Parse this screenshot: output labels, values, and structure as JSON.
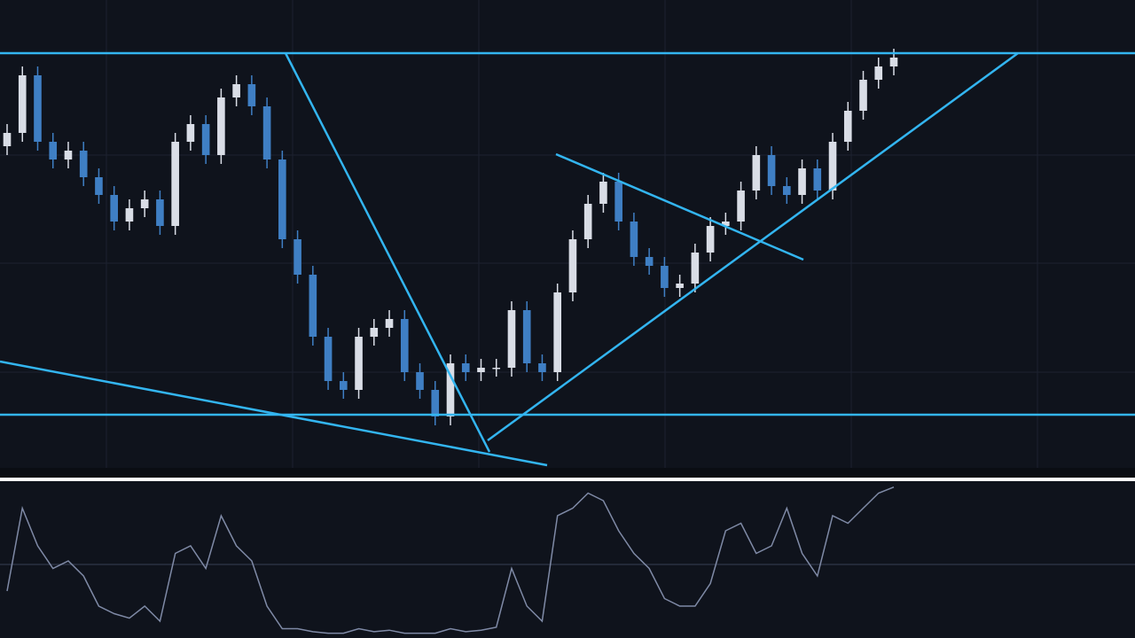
{
  "chart_data": [
    {
      "type": "candlestick",
      "open": [
        360,
        375,
        440,
        365,
        345,
        355,
        325,
        305,
        275,
        290,
        300,
        270,
        365,
        385,
        350,
        415,
        430,
        405,
        345,
        255,
        215,
        145,
        95,
        85,
        145,
        155,
        165,
        105,
        85,
        55,
        115,
        105,
        110,
        110,
        175,
        115,
        105,
        195,
        255,
        295,
        320,
        275,
        235,
        225,
        200,
        205,
        240,
        270,
        275,
        310,
        350,
        315,
        305,
        335,
        310,
        365,
        400,
        435,
        450
      ],
      "high": [
        385,
        450,
        450,
        375,
        365,
        365,
        335,
        315,
        300,
        310,
        310,
        375,
        395,
        395,
        425,
        440,
        440,
        415,
        355,
        265,
        225,
        155,
        105,
        155,
        165,
        175,
        175,
        115,
        95,
        125,
        125,
        120,
        120,
        185,
        185,
        125,
        205,
        265,
        305,
        330,
        330,
        285,
        245,
        235,
        215,
        250,
        280,
        285,
        320,
        360,
        360,
        325,
        345,
        345,
        375,
        410,
        445,
        460,
        470
      ],
      "low": [
        350,
        365,
        355,
        335,
        335,
        315,
        295,
        265,
        265,
        280,
        260,
        260,
        355,
        340,
        340,
        405,
        395,
        335,
        245,
        205,
        135,
        85,
        75,
        75,
        135,
        145,
        95,
        75,
        45,
        45,
        95,
        95,
        100,
        100,
        105,
        95,
        95,
        185,
        245,
        285,
        265,
        225,
        215,
        190,
        190,
        195,
        230,
        260,
        265,
        300,
        305,
        295,
        295,
        300,
        300,
        355,
        390,
        425,
        440
      ],
      "close": [
        375,
        440,
        365,
        345,
        355,
        325,
        305,
        275,
        290,
        300,
        270,
        365,
        385,
        350,
        415,
        430,
        405,
        345,
        255,
        215,
        145,
        95,
        85,
        145,
        155,
        165,
        105,
        85,
        55,
        115,
        105,
        110,
        110,
        175,
        115,
        105,
        195,
        255,
        295,
        320,
        275,
        235,
        225,
        200,
        205,
        240,
        270,
        275,
        310,
        350,
        315,
        305,
        335,
        310,
        365,
        400,
        435,
        450,
        460
      ],
      "up_color": "#d9dde6",
      "down_color": "#3f7fc4",
      "ylim": [
        0,
        485
      ]
    },
    {
      "type": "line",
      "values": [
        30,
        85,
        60,
        45,
        50,
        40,
        20,
        15,
        12,
        20,
        10,
        55,
        60,
        45,
        80,
        60,
        50,
        20,
        5,
        5,
        3,
        2,
        2,
        5,
        3,
        4,
        2,
        2,
        2,
        5,
        3,
        4,
        6,
        45,
        20,
        10,
        80,
        85,
        95,
        90,
        70,
        55,
        45,
        25,
        20,
        20,
        35,
        70,
        75,
        55,
        60,
        85,
        55,
        40,
        80,
        75,
        85,
        95,
        99
      ],
      "color": "#7f8aa6",
      "ylim": [
        0,
        100
      ]
    }
  ]
}
